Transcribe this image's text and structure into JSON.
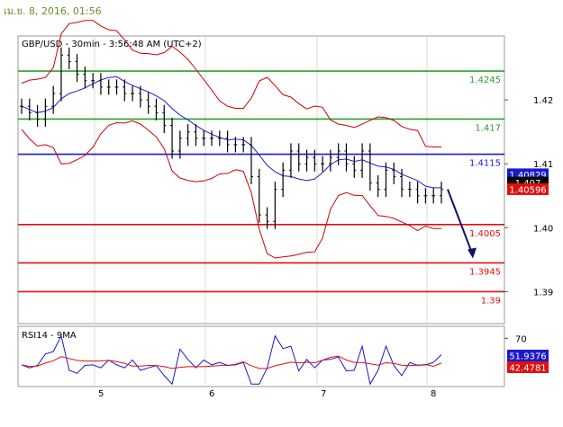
{
  "header": {
    "date_time": "เม.ย. 8, 2016, 01:56"
  },
  "chart_data": {
    "type": "line",
    "title": "GBP/USD - 30min - 3:56:48 AM (UTC+2)",
    "x_ticks": [
      "5",
      "6",
      "7",
      "8"
    ],
    "ylim": [
      1.385,
      1.43
    ],
    "y_ticks": [
      "1.42",
      "1.41",
      "1.40",
      "1.39"
    ],
    "levels": [
      {
        "label": "1.4245",
        "value": 1.4245,
        "color": "#2e9e2e"
      },
      {
        "label": "1.417",
        "value": 1.417,
        "color": "#2e9e2e"
      },
      {
        "label": "1.4115",
        "value": 1.4115,
        "color": "#1a1acc"
      },
      {
        "label": "1.4005",
        "value": 1.4005,
        "color": "#e01010"
      },
      {
        "label": "1.3945",
        "value": 1.3945,
        "color": "#e01010"
      },
      {
        "label": "1.39",
        "value": 1.39,
        "color": "#e01010"
      }
    ],
    "price_flags": [
      {
        "label": "1.40829",
        "value": 1.40829,
        "color": "#1a1acc"
      },
      {
        "label": "1.407",
        "value": 1.407,
        "color": "#000000"
      },
      {
        "label": "1.40596",
        "value": 1.40596,
        "color": "#e01010"
      }
    ],
    "close_series": [
      1.419,
      1.418,
      1.417,
      1.419,
      1.421,
      1.427,
      1.426,
      1.424,
      1.423,
      1.423,
      1.422,
      1.422,
      1.422,
      1.421,
      1.421,
      1.42,
      1.419,
      1.418,
      1.416,
      1.412,
      1.414,
      1.415,
      1.414,
      1.414,
      1.414,
      1.414,
      1.413,
      1.413,
      1.413,
      1.408,
      1.402,
      1.401,
      1.406,
      1.409,
      1.412,
      1.41,
      1.411,
      1.41,
      1.41,
      1.411,
      1.412,
      1.41,
      1.409,
      1.412,
      1.407,
      1.406,
      1.409,
      1.408,
      1.406,
      1.406,
      1.405,
      1.405,
      1.405,
      1.406
    ],
    "rsi": {
      "label": "RSI14 - 9MA",
      "ylim": [
        30,
        80
      ],
      "y_ticks": [
        "70"
      ],
      "rsi_value": "51.9376",
      "ma_value": "42.4781",
      "rsi_color": "#1a1acc",
      "ma_color": "#e01010"
    },
    "forecast": "down",
    "colors": {
      "candle": "#000000",
      "bands": "#cc0000",
      "mid_ma": "#1a1acc"
    }
  }
}
